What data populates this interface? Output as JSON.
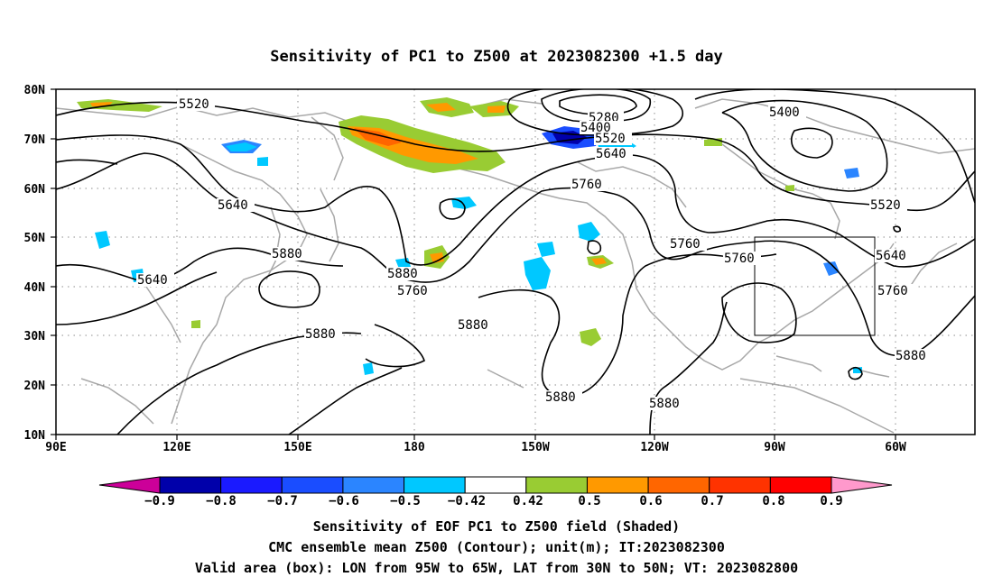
{
  "title": "Sensitivity of PC1 to Z500 at 2023082300 +1.5 day",
  "lat_labels": [
    "80N",
    "70N",
    "60N",
    "50N",
    "40N",
    "30N",
    "20N",
    "10N"
  ],
  "lon_labels": [
    "90E",
    "120E",
    "150E",
    "180",
    "150W",
    "120W",
    "90W",
    "60W"
  ],
  "contour_labels": [
    {
      "text": "5520",
      "key": "c1"
    },
    {
      "text": "5280",
      "key": "c2"
    },
    {
      "text": "5400",
      "key": "c3"
    },
    {
      "text": "5520",
      "key": "c4"
    },
    {
      "text": "5640",
      "key": "c5"
    },
    {
      "text": "5400",
      "key": "c6"
    },
    {
      "text": "5760",
      "key": "c7"
    },
    {
      "text": "5640",
      "key": "c8"
    },
    {
      "text": "5520",
      "key": "c9"
    },
    {
      "text": "5760",
      "key": "c10"
    },
    {
      "text": "5880",
      "key": "c11"
    },
    {
      "text": "5640",
      "key": "c12"
    },
    {
      "text": "5760",
      "key": "c13"
    },
    {
      "text": "5880",
      "key": "c14"
    },
    {
      "text": "5640",
      "key": "c15"
    },
    {
      "text": "5760",
      "key": "c16"
    },
    {
      "text": "5760",
      "key": "c17"
    },
    {
      "text": "5880",
      "key": "c18"
    },
    {
      "text": "5880",
      "key": "c19"
    },
    {
      "text": "5880",
      "key": "c20"
    },
    {
      "text": "5880",
      "key": "c21"
    },
    {
      "text": "5880",
      "key": "c22"
    }
  ],
  "colorbar": {
    "colors": [
      "#0000aa",
      "#1a1aff",
      "#1a4dff",
      "#2b85ff",
      "#00c8ff",
      "#ffffff",
      "#99cc33",
      "#ff9900",
      "#ff6600",
      "#ff3300",
      "#ff0000"
    ],
    "left_triangle": "#cc0099",
    "right_triangle": "#ff99cc",
    "labels": [
      "−0.9",
      "−0.8",
      "−0.7",
      "−0.6",
      "−0.5",
      "−0.42",
      "0.42",
      "0.5",
      "0.6",
      "0.7",
      "0.8",
      "0.9"
    ]
  },
  "captions": [
    "Sensitivity of EOF PC1 to Z500 field (Shaded)",
    "CMC ensemble mean Z500 (Contour); unit(m); IT:2023082300",
    "Valid area (box): LON from 95W to 65W, LAT from 30N to 50N; VT: 2023082800"
  ],
  "valid_box": {
    "lon_min": -95,
    "lon_max": -65,
    "lat_min": 30,
    "lat_max": 50
  }
}
